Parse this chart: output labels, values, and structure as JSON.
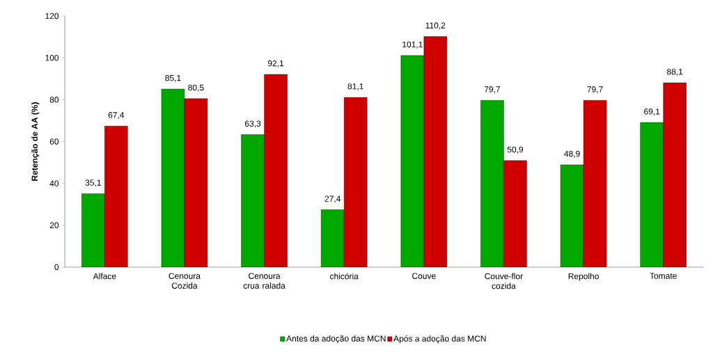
{
  "chart_data": {
    "type": "bar",
    "ylabel": "Retenção de AA (%)",
    "categories": [
      "Alface",
      "Cenoura Cozida",
      "Cenoura crua ralada",
      "chicória",
      "Couve",
      "Couve-flor cozida",
      "Repolho",
      "Tomate"
    ],
    "series": [
      {
        "name": "Antes da adoção das MCN",
        "color": "#00a800",
        "values": [
          35.1,
          85.1,
          63.3,
          27.4,
          101.1,
          79.7,
          48.9,
          69.1
        ],
        "value_labels": [
          "35,1",
          "85,1",
          "63,3",
          "27,4",
          "101,1",
          "79,7",
          "48,9",
          "69,1"
        ]
      },
      {
        "name": "Após a adoção das MCN",
        "color": "#d00000",
        "values": [
          67.4,
          80.5,
          92.1,
          81.1,
          110.2,
          50.9,
          79.7,
          88.1
        ],
        "value_labels": [
          "67,4",
          "80,5",
          "92,1",
          "81,1",
          "110,2",
          "50,9",
          "79,7",
          "88,1"
        ]
      }
    ],
    "ylim": [
      0,
      120
    ],
    "yticks": [
      0,
      20,
      40,
      60,
      80,
      100,
      120
    ],
    "legend": "bottom"
  }
}
